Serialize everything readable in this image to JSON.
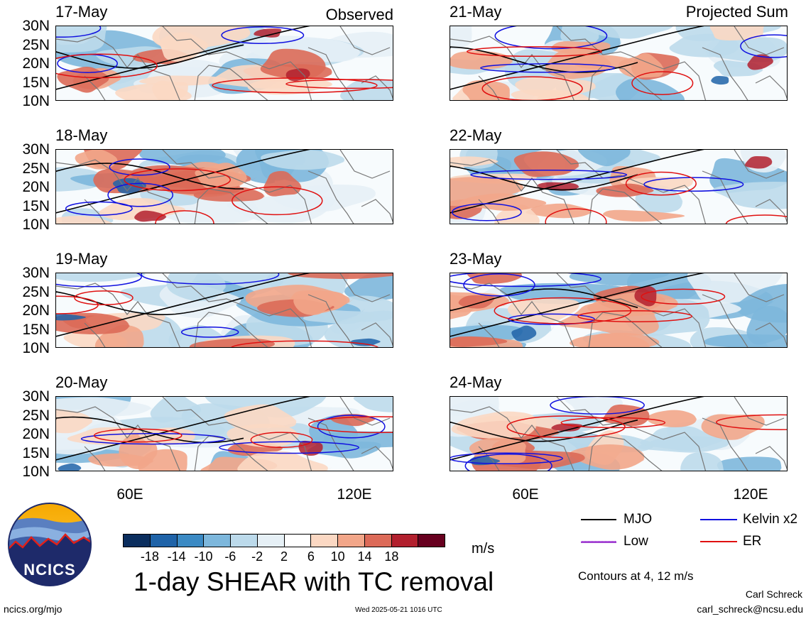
{
  "section_labels": {
    "observed": "Observed",
    "projected": "Projected Sum"
  },
  "panels_left": [
    {
      "date": "17-May",
      "lat_labels": [
        "30N",
        "25N",
        "20N",
        "15N",
        "10N"
      ]
    },
    {
      "date": "18-May",
      "lat_labels": [
        "30N",
        "25N",
        "20N",
        "15N",
        "10N"
      ]
    },
    {
      "date": "19-May",
      "lat_labels": [
        "30N",
        "25N",
        "20N",
        "15N",
        "10N"
      ]
    },
    {
      "date": "20-May",
      "lat_labels": [
        "30N",
        "25N",
        "20N",
        "15N",
        "10N"
      ]
    }
  ],
  "panels_right": [
    {
      "date": "21-May"
    },
    {
      "date": "22-May"
    },
    {
      "date": "23-May"
    },
    {
      "date": "24-May"
    }
  ],
  "lon_labels": [
    "60E",
    "120E"
  ],
  "colorbar": {
    "ticks": [
      "-18",
      "-14",
      "-10",
      "-6",
      "-2",
      "2",
      "6",
      "10",
      "14",
      "18"
    ],
    "colors": [
      "#0b2e5e",
      "#1f63a8",
      "#3b8ac4",
      "#7db7dc",
      "#bcdaeb",
      "#e6f0f6",
      "#ffffff",
      "#fbd8c3",
      "#f2a689",
      "#dc6a58",
      "#b2202e",
      "#67001f"
    ],
    "units": "m/s"
  },
  "title": "1-day SHEAR with TC removal",
  "legend": {
    "items": [
      {
        "label": "MJO",
        "color": "#000000"
      },
      {
        "label": "Kelvin x2",
        "color": "#1010e0"
      },
      {
        "label": "Low",
        "color": "#a040d0"
      },
      {
        "label": "ER",
        "color": "#e01010"
      }
    ],
    "contours_note": "Contours at 4, 12 m/s"
  },
  "footer": {
    "logo_text": "NCICS",
    "url": "ncics.org/mjo",
    "timestamp": "Wed 2025-05-21 1016 UTC",
    "author": "Carl Schreck",
    "email": "carl_schreck@ncsu.edu"
  }
}
